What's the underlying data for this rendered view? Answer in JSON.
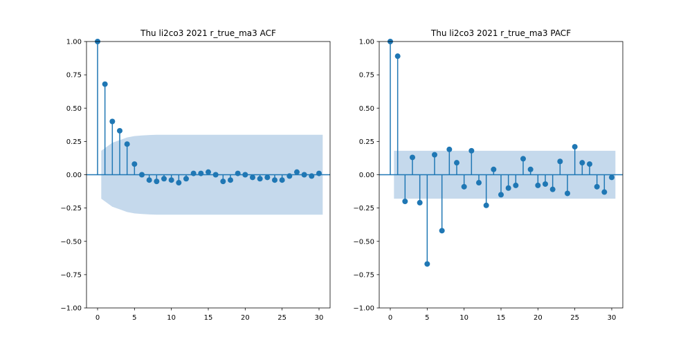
{
  "chart_data": [
    {
      "type": "stem",
      "title": "Thu li2co3 2021 r_true_ma3 ACF",
      "xlim": [
        -1.5,
        31.5
      ],
      "ylim": [
        -1.0,
        1.0
      ],
      "xticks": [
        0,
        5,
        10,
        15,
        20,
        25,
        30
      ],
      "xtick_labels": [
        "0",
        "5",
        "10",
        "15",
        "20",
        "25",
        "30"
      ],
      "yticks": [
        1.0,
        0.75,
        0.5,
        0.25,
        0.0,
        -0.25,
        -0.5,
        -0.75,
        -1.0
      ],
      "ytick_labels": [
        "1.00",
        "0.75",
        "0.50",
        "0.25",
        "0.00",
        "−0.25",
        "−0.50",
        "−0.75",
        "−1.00"
      ],
      "lags": [
        0,
        1,
        2,
        3,
        4,
        5,
        6,
        7,
        8,
        9,
        10,
        11,
        12,
        13,
        14,
        15,
        16,
        17,
        18,
        19,
        20,
        21,
        22,
        23,
        24,
        25,
        26,
        27,
        28,
        29,
        30
      ],
      "values": [
        1.0,
        0.68,
        0.4,
        0.33,
        0.23,
        0.08,
        0.0,
        -0.04,
        -0.05,
        -0.03,
        -0.04,
        -0.06,
        -0.03,
        0.01,
        0.01,
        0.02,
        0.0,
        -0.05,
        -0.04,
        0.01,
        0.0,
        -0.02,
        -0.03,
        -0.02,
        -0.04,
        -0.04,
        -0.01,
        0.02,
        0.0,
        -0.01,
        0.01
      ],
      "confidence_band": {
        "lags": [
          0.5,
          1,
          2,
          3,
          4,
          5,
          6,
          7,
          8,
          9,
          10,
          15,
          20,
          25,
          30,
          30.5
        ],
        "upper": [
          0.18,
          0.2,
          0.24,
          0.26,
          0.28,
          0.29,
          0.295,
          0.298,
          0.3,
          0.3,
          0.3,
          0.3,
          0.3,
          0.3,
          0.3,
          0.3
        ]
      },
      "grid": false,
      "color": "#1f77b4",
      "band_color": "#c5d9ec"
    },
    {
      "type": "stem",
      "title": "Thu li2co3 2021 r_true_ma3 PACF",
      "xlim": [
        -1.5,
        31.5
      ],
      "ylim": [
        -1.0,
        1.0
      ],
      "xticks": [
        0,
        5,
        10,
        15,
        20,
        25,
        30
      ],
      "xtick_labels": [
        "0",
        "5",
        "10",
        "15",
        "20",
        "25",
        "30"
      ],
      "yticks": [
        1.0,
        0.75,
        0.5,
        0.25,
        0.0,
        -0.25,
        -0.5,
        -0.75,
        -1.0
      ],
      "ytick_labels": [
        "1.00",
        "0.75",
        "0.50",
        "0.25",
        "0.00",
        "−0.25",
        "−0.50",
        "−0.75",
        "−1.00"
      ],
      "lags": [
        0,
        1,
        2,
        3,
        4,
        5,
        6,
        7,
        8,
        9,
        10,
        11,
        12,
        13,
        14,
        15,
        16,
        17,
        18,
        19,
        20,
        21,
        22,
        23,
        24,
        25,
        26,
        27,
        28,
        29,
        30
      ],
      "values": [
        1.0,
        0.89,
        -0.2,
        0.13,
        -0.21,
        -0.67,
        0.15,
        -0.42,
        0.19,
        0.09,
        -0.09,
        0.18,
        -0.06,
        -0.23,
        0.04,
        -0.15,
        -0.1,
        -0.08,
        0.12,
        0.04,
        -0.08,
        -0.07,
        -0.11,
        0.1,
        -0.14,
        0.21,
        0.09,
        0.08,
        -0.09,
        -0.13,
        -0.02
      ],
      "confidence_band": {
        "lags": [
          0.5,
          30.5
        ],
        "upper": [
          0.18,
          0.18
        ]
      },
      "grid": false,
      "color": "#1f77b4",
      "band_color": "#c5d9ec"
    }
  ]
}
